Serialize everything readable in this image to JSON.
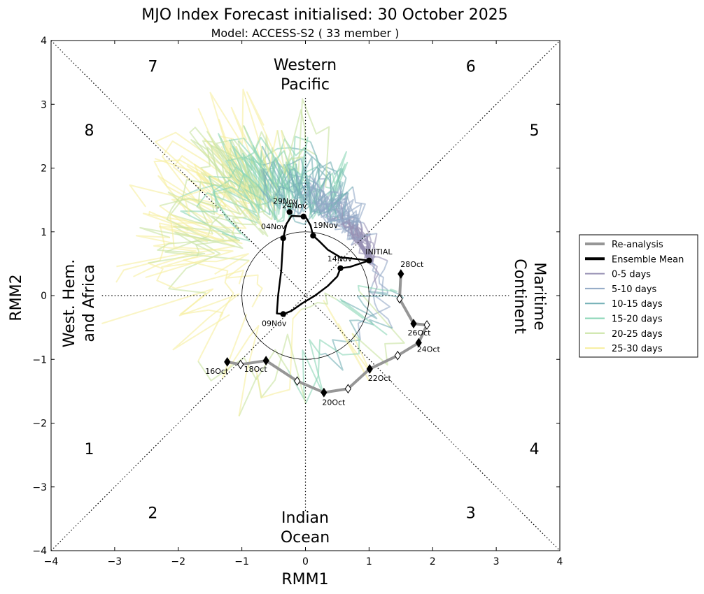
{
  "chart_data": {
    "type": "line",
    "title": "MJO Index Forecast initialised:  30  October 2025",
    "subtitle": "Model: ACCESS-S2 ( 33 member )",
    "xlabel": "RMM1",
    "ylabel": "RMM2",
    "xlim": [
      -4,
      4
    ],
    "ylim": [
      -4,
      4
    ],
    "xticks": [
      -4,
      -3,
      -2,
      -1,
      0,
      1,
      2,
      3,
      4
    ],
    "yticks": [
      -4,
      -3,
      -2,
      -1,
      0,
      1,
      2,
      3,
      4
    ],
    "tick_labels": [
      "−4",
      "−3",
      "−2",
      "−1",
      "0",
      "1",
      "2",
      "3",
      "4"
    ],
    "phase_labels": [
      {
        "text": "1",
        "x": -3.4,
        "y": -2.4
      },
      {
        "text": "2",
        "x": -2.4,
        "y": -3.4
      },
      {
        "text": "3",
        "x": 2.6,
        "y": -3.4
      },
      {
        "text": "4",
        "x": 3.6,
        "y": -2.4
      },
      {
        "text": "5",
        "x": 3.6,
        "y": 2.6
      },
      {
        "text": "6",
        "x": 2.6,
        "y": 3.6
      },
      {
        "text": "7",
        "x": -2.4,
        "y": 3.6
      },
      {
        "text": "8",
        "x": -3.4,
        "y": 2.6
      }
    ],
    "region_labels": {
      "top": [
        "Western",
        "Pacific"
      ],
      "bottom": [
        "Indian",
        "Ocean"
      ],
      "left": [
        "West. Hem.",
        "and Africa"
      ],
      "right": [
        "Maritime",
        "Continent"
      ]
    },
    "reanalysis": {
      "name": "Re-analysis",
      "points": [
        {
          "x": -1.23,
          "y": -1.04,
          "filled": true,
          "label": "16Oct"
        },
        {
          "x": -1.02,
          "y": -1.08,
          "filled": false
        },
        {
          "x": -0.62,
          "y": -1.02,
          "filled": true,
          "label": "18Oct"
        },
        {
          "x": -0.13,
          "y": -1.34,
          "filled": false
        },
        {
          "x": 0.29,
          "y": -1.52,
          "filled": true,
          "label": "20Oct"
        },
        {
          "x": 0.67,
          "y": -1.46,
          "filled": false
        },
        {
          "x": 1.01,
          "y": -1.15,
          "filled": true,
          "label": "22Oct"
        },
        {
          "x": 1.45,
          "y": -0.94,
          "filled": false
        },
        {
          "x": 1.78,
          "y": -0.74,
          "filled": true,
          "label": "24Oct"
        },
        {
          "x": 1.91,
          "y": -0.46,
          "filled": false
        },
        {
          "x": 1.7,
          "y": -0.44,
          "filled": true,
          "label": "26Oct"
        },
        {
          "x": 1.48,
          "y": -0.05,
          "filled": false
        },
        {
          "x": 1.5,
          "y": 0.34,
          "filled": true,
          "label": "28Oct"
        }
      ]
    },
    "ensemble_mean": {
      "name": "Ensemble Mean",
      "path": [
        [
          1.0,
          0.55
        ],
        [
          0.85,
          0.5
        ],
        [
          0.7,
          0.45
        ],
        [
          0.55,
          0.43
        ],
        [
          0.5,
          0.3
        ],
        [
          0.35,
          0.15
        ],
        [
          0.15,
          0.0
        ],
        [
          -0.05,
          -0.12
        ],
        [
          -0.22,
          -0.24
        ],
        [
          -0.35,
          -0.29
        ],
        [
          -0.45,
          -0.28
        ],
        [
          -0.43,
          0.0
        ],
        [
          -0.38,
          0.4
        ],
        [
          -0.35,
          0.9
        ],
        [
          -0.3,
          1.12
        ],
        [
          -0.22,
          1.25
        ],
        [
          0.0,
          1.24
        ],
        [
          0.08,
          1.1
        ],
        [
          0.12,
          0.94
        ],
        [
          0.22,
          0.85
        ],
        [
          0.35,
          0.72
        ],
        [
          0.55,
          0.6
        ],
        [
          0.75,
          0.58
        ],
        [
          1.0,
          0.55
        ]
      ],
      "markers": [
        {
          "x": 1.0,
          "y": 0.55,
          "label": "INITIAL"
        },
        {
          "x": 0.55,
          "y": 0.43,
          "label": "14Nov"
        },
        {
          "x": 0.12,
          "y": 0.94,
          "label": "19Nov"
        },
        {
          "x": -0.03,
          "y": 1.24,
          "label": "24Nov"
        },
        {
          "x": -0.25,
          "y": 1.31,
          "label": "29Nov"
        },
        {
          "x": -0.35,
          "y": 0.9,
          "label": "04Nov"
        },
        {
          "x": -0.35,
          "y": -0.29,
          "label": "09Nov"
        }
      ]
    },
    "legend": [
      {
        "name": "Re-analysis",
        "color": "#969696"
      },
      {
        "name": "Ensemble Mean",
        "color": "#000000"
      },
      {
        "name": "0-5 days",
        "color": "#9891b4"
      },
      {
        "name": "5-10 days",
        "color": "#93a9c6"
      },
      {
        "name": "10-15 days",
        "color": "#74b0b6"
      },
      {
        "name": "15-20 days",
        "color": "#8ad5b6"
      },
      {
        "name": "20-25 days",
        "color": "#c8e3a0"
      },
      {
        "name": "25-30 days",
        "color": "#f7ee9e"
      }
    ],
    "members": 33
  }
}
